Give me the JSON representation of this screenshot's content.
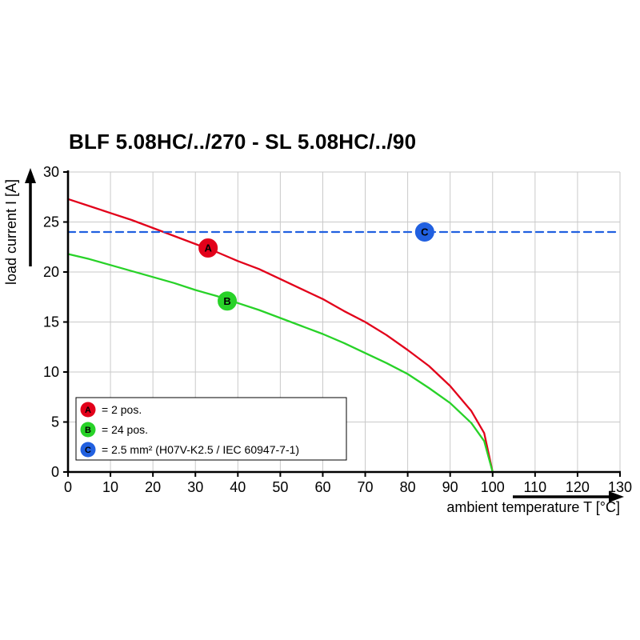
{
  "chart_data": {
    "type": "line",
    "title": "BLF 5.08HC/../270 - SL 5.08HC/../90",
    "xlabel": "ambient temperature T [°C]",
    "ylabel": "load current I [A]",
    "xlim": [
      0,
      130
    ],
    "ylim": [
      0,
      30
    ],
    "xticks": [
      0,
      10,
      20,
      30,
      40,
      50,
      60,
      70,
      80,
      90,
      100,
      110,
      120,
      130
    ],
    "yticks": [
      0,
      5,
      10,
      15,
      20,
      25,
      30
    ],
    "grid": true,
    "grid_color": "#c9c9c9",
    "axis_color": "#000000",
    "series": [
      {
        "name": "A",
        "legend_label": "= 2 pos.",
        "color": "#e2001a",
        "style": "solid",
        "points": [
          [
            0,
            27.3
          ],
          [
            5,
            26.6
          ],
          [
            10,
            25.9
          ],
          [
            15,
            25.2
          ],
          [
            20,
            24.4
          ],
          [
            25,
            23.6
          ],
          [
            30,
            22.8
          ],
          [
            35,
            22.0
          ],
          [
            40,
            21.1
          ],
          [
            45,
            20.3
          ],
          [
            50,
            19.3
          ],
          [
            55,
            18.3
          ],
          [
            60,
            17.3
          ],
          [
            65,
            16.1
          ],
          [
            70,
            15.0
          ],
          [
            75,
            13.7
          ],
          [
            80,
            12.2
          ],
          [
            85,
            10.6
          ],
          [
            90,
            8.6
          ],
          [
            95,
            6.1
          ],
          [
            98,
            3.9
          ],
          [
            100,
            0
          ]
        ]
      },
      {
        "name": "B",
        "legend_label": "= 24 pos.",
        "color": "#28d228",
        "style": "solid",
        "points": [
          [
            0,
            21.8
          ],
          [
            5,
            21.3
          ],
          [
            10,
            20.7
          ],
          [
            15,
            20.1
          ],
          [
            20,
            19.5
          ],
          [
            25,
            18.9
          ],
          [
            30,
            18.2
          ],
          [
            35,
            17.6
          ],
          [
            40,
            16.9
          ],
          [
            45,
            16.2
          ],
          [
            50,
            15.4
          ],
          [
            55,
            14.6
          ],
          [
            60,
            13.8
          ],
          [
            65,
            12.9
          ],
          [
            70,
            11.9
          ],
          [
            75,
            10.9
          ],
          [
            80,
            9.8
          ],
          [
            85,
            8.4
          ],
          [
            90,
            6.9
          ],
          [
            95,
            4.9
          ],
          [
            98,
            3.1
          ],
          [
            100,
            0
          ]
        ]
      },
      {
        "name": "C",
        "legend_label": "= 2.5 mm² (H07V-K2.5 / IEC 60947-7-1)",
        "color": "#2160e0",
        "style": "dashed",
        "points": [
          [
            0,
            24
          ],
          [
            130,
            24
          ]
        ]
      }
    ],
    "markers": [
      {
        "series": "A",
        "x": 33,
        "y": 22.4
      },
      {
        "series": "B",
        "x": 37.5,
        "y": 17.1
      },
      {
        "series": "C",
        "x": 84,
        "y": 24
      }
    ],
    "legend_position": "bottom-left-inside"
  }
}
